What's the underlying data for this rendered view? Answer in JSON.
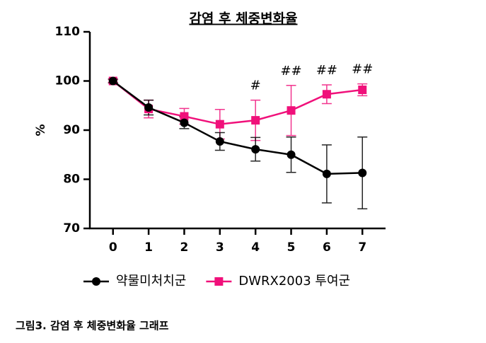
{
  "chart_data": {
    "type": "line",
    "title": "감염 후 체중변화율",
    "y_label": "%",
    "x": [
      0,
      1,
      2,
      3,
      4,
      5,
      6,
      7
    ],
    "xlim": [
      -0.65,
      7.65
    ],
    "xticks": [
      0,
      1,
      2,
      3,
      4,
      5,
      6,
      7
    ],
    "ylim": [
      70,
      110
    ],
    "yticks": [
      70,
      80,
      90,
      100,
      110
    ],
    "series": [
      {
        "name": "약물미처치군",
        "color": "#000000",
        "marker": "circle",
        "values": [
          100,
          94.6,
          91.5,
          87.7,
          86.1,
          85.0,
          81.1,
          81.3
        ],
        "errors": [
          0.4,
          1.5,
          1.2,
          1.8,
          2.4,
          3.6,
          5.9,
          7.3
        ]
      },
      {
        "name": "DWRX2003 투여군",
        "color": "#f0107a",
        "marker": "square",
        "values": [
          100,
          94.3,
          92.8,
          91.2,
          92.0,
          94.0,
          97.3,
          98.2
        ],
        "errors": [
          0.3,
          1.8,
          1.6,
          3.0,
          4.1,
          5.1,
          1.9,
          1.2
        ]
      }
    ],
    "annotations": [
      {
        "x": 4,
        "text": "#"
      },
      {
        "x": 5,
        "text": "##"
      },
      {
        "x": 6,
        "text": "##"
      },
      {
        "x": 7,
        "text": "##"
      }
    ]
  },
  "caption": "그림3. 감염 후 체중변화율 그래프"
}
